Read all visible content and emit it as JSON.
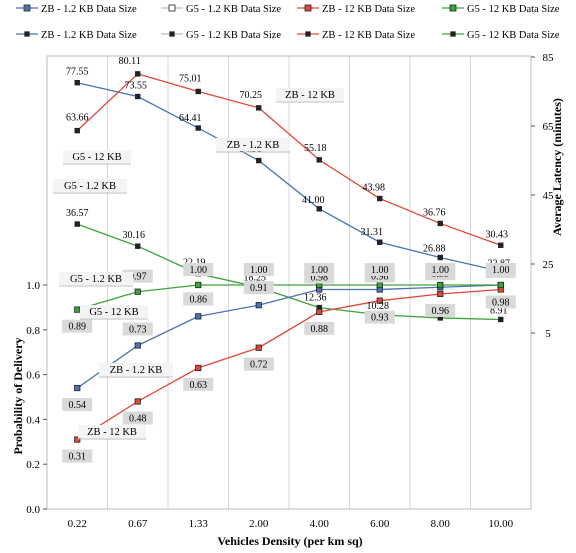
{
  "legend_rows": [
    [
      "ZB - 1.2 KB Data Size",
      "G5 - 1.2 KB Data Size",
      "ZB - 12 KB Data Size",
      "G5 - 12 KB Data Size"
    ],
    [
      "ZB - 1.2 KB Data Size",
      "G5 - 1.2 KB Data Size",
      "ZB - 12 KB Data Size",
      "G5 - 12 KB Data Size"
    ]
  ],
  "chart_data": {
    "type": "line",
    "xlabel": "Vehicles Density (per km sq)",
    "categories": [
      "0.22",
      "0.67",
      "1.33",
      "2.00",
      "4.00",
      "6.00",
      "8.00",
      "10.00"
    ],
    "latency_axis": {
      "label": "Average Latency (minutes)",
      "ylim": [
        5,
        85
      ],
      "ticks": [
        "5",
        "25",
        "45",
        "65",
        "85"
      ]
    },
    "probability_axis": {
      "label": "Probability of Delivery",
      "ylim": [
        0.0,
        1.0
      ],
      "ticks": [
        "0.0",
        "0.2",
        "0.4",
        "0.6",
        "0.8",
        "1.0"
      ]
    },
    "series": [
      {
        "name": "ZB - 1.2 KB Data Size",
        "panel": "latency",
        "color": "#4a74b4",
        "values": [
          77.55,
          73.55,
          64.41,
          54.98,
          41.0,
          31.31,
          26.88,
          22.87
        ],
        "labels": [
          "77.55",
          "73.55",
          "64.41",
          "54.98",
          "41.00",
          "31.31",
          "26.88",
          "22.87"
        ]
      },
      {
        "name": "ZB - 12 KB Data Size",
        "panel": "latency",
        "color": "#e0473a",
        "values": [
          63.66,
          80.11,
          75.01,
          70.25,
          55.18,
          43.98,
          36.76,
          30.43
        ],
        "labels": [
          "63.66",
          "80.11",
          "75.01",
          "70.25",
          "55.18",
          "43.98",
          "36.76",
          "30.43"
        ]
      },
      {
        "name": "G5 - 12 KB Data Size",
        "panel": "latency",
        "color": "#3aa33a",
        "values": [
          36.57,
          30.16,
          22.19,
          18.25,
          12.36,
          10.28,
          9.37,
          8.91
        ],
        "labels": [
          "36.57",
          "30.16",
          "22.19",
          "18.25",
          "12.36",
          "10.28",
          "9.37",
          "8.91"
        ]
      },
      {
        "name": "ZB - 1.2 KB Data Size",
        "panel": "probability",
        "color": "#4a74b4",
        "values": [
          0.54,
          0.73,
          0.86,
          0.91,
          0.98,
          0.98,
          0.99,
          1.0
        ],
        "labels": [
          "0.54",
          "0.73",
          "0.86",
          "0.91",
          "0.98",
          "0.98",
          "0.99",
          "1.00"
        ]
      },
      {
        "name": "ZB - 12 KB Data Size",
        "panel": "probability",
        "color": "#e0473a",
        "values": [
          0.31,
          0.48,
          0.63,
          0.72,
          0.88,
          0.93,
          0.96,
          0.98
        ],
        "labels": [
          "0.31",
          "0.48",
          "0.63",
          "0.72",
          "0.88",
          "0.93",
          "0.96",
          "0.98"
        ]
      },
      {
        "name": "G5 - 12 KB Data Size",
        "panel": "probability",
        "color": "#3aa33a",
        "values": [
          0.89,
          0.97,
          1.0,
          1.0,
          1.0,
          1.0,
          1.0,
          1.0
        ],
        "labels": [
          "0.89",
          "0.97",
          "1.00",
          "1.00",
          "1.00",
          "1.00",
          "1.00",
          "1.00"
        ]
      }
    ],
    "annotations": [
      {
        "text": "ZB - 12 KB",
        "panel": "latency"
      },
      {
        "text": "ZB - 1.2 KB",
        "panel": "latency"
      },
      {
        "text": "G5 - 12 KB",
        "panel": "latency"
      },
      {
        "text": "G5 - 1.2 KB",
        "panel": "latency"
      },
      {
        "text": "G5 - 1.2 KB",
        "panel": "probability"
      },
      {
        "text": "G5 - 12 KB",
        "panel": "probability"
      },
      {
        "text": "ZB - 1.2 KB",
        "panel": "probability"
      },
      {
        "text": "ZB - 12 KB",
        "panel": "probability"
      }
    ]
  }
}
